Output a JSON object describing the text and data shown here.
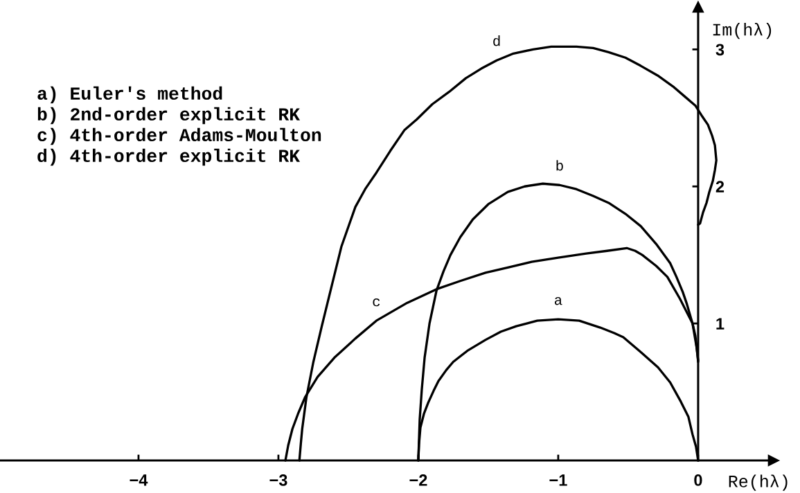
{
  "chart_data": {
    "type": "line",
    "xlabel": "Re(hλ)",
    "ylabel": "Im(hλ)",
    "annotations": [
      "a) Euler's method",
      "b) 2nd-order explicit RK",
      "c) 4th-order Adams-Moulton",
      "d) 4th-order explicit RK"
    ],
    "xlim": [
      -4.99,
      0.54
    ],
    "ylim": [
      0,
      3.31
    ],
    "xticks": [
      {
        "value": -4,
        "label": "−4"
      },
      {
        "value": -3,
        "label": "−3"
      },
      {
        "value": -2,
        "label": "−2"
      },
      {
        "value": -1,
        "label": "−1"
      },
      0
    ],
    "yticks": [
      1,
      2,
      3
    ],
    "series": [
      {
        "name": "a",
        "color": "#000000",
        "x": [
          -2,
          -1.995,
          -1.985,
          -1.96,
          -1.93,
          -1.89,
          -1.856,
          -1.8,
          -1.75,
          -1.65,
          -1.52,
          -1.41,
          -1.3,
          -1.15,
          -1.0,
          -0.85,
          -0.7,
          -0.6,
          -0.535,
          -0.42,
          -0.287,
          -0.2,
          -0.124,
          -0.07,
          -0.04,
          -0.015,
          0
        ],
        "values": [
          0,
          0.12,
          0.24,
          0.34,
          0.42,
          0.51,
          0.58,
          0.66,
          0.72,
          0.8,
          0.88,
          0.94,
          0.98,
          1.02,
          1.03,
          1.02,
          0.97,
          0.93,
          0.9,
          0.8,
          0.68,
          0.57,
          0.43,
          0.32,
          0.19,
          0.1,
          0
        ]
      },
      {
        "name": "b",
        "color": "#000000",
        "x": [
          -2,
          -1.995,
          -1.99,
          -1.975,
          -1.955,
          -1.92,
          -1.87,
          -1.82,
          -1.77,
          -1.7,
          -1.61,
          -1.5,
          -1.36,
          -1.24,
          -1.11,
          -0.99,
          -0.87,
          -0.75,
          -0.64,
          -0.52,
          -0.41,
          -0.3,
          -0.2,
          -0.155,
          -0.11,
          -0.08,
          -0.04,
          -0.02,
          -0.01,
          0
        ],
        "values": [
          0,
          0.15,
          0.3,
          0.52,
          0.75,
          1.0,
          1.24,
          1.38,
          1.5,
          1.63,
          1.76,
          1.87,
          1.96,
          2.0,
          2.02,
          2.01,
          1.98,
          1.93,
          1.88,
          1.8,
          1.71,
          1.58,
          1.44,
          1.34,
          1.23,
          1.14,
          1.0,
          0.91,
          0.82,
          0.73
        ]
      },
      {
        "name": "c",
        "color": "#000000",
        "x": [
          -2.95,
          -2.93,
          -2.9,
          -2.86,
          -2.81,
          -2.72,
          -2.6,
          -2.45,
          -2.3,
          -2.08,
          -1.87,
          -1.7,
          -1.52,
          -1.35,
          -1.19,
          -1.0,
          -0.8,
          -0.65,
          -0.51,
          -0.45,
          -0.4,
          -0.3,
          -0.22,
          -0.13,
          -0.07,
          -0.04,
          -0.01,
          0
        ],
        "values": [
          0,
          0.11,
          0.23,
          0.34,
          0.46,
          0.61,
          0.75,
          0.89,
          1.02,
          1.15,
          1.25,
          1.31,
          1.37,
          1.41,
          1.45,
          1.48,
          1.51,
          1.53,
          1.55,
          1.53,
          1.5,
          1.42,
          1.34,
          1.18,
          1.06,
          1.0,
          0.82,
          0.72
        ]
      },
      {
        "name": "d",
        "color": "#000000",
        "x": [
          -2.85,
          -2.84,
          -2.83,
          -2.8,
          -2.75,
          -2.69,
          -2.62,
          -2.55,
          -2.45,
          -2.38,
          -2.3,
          -2.2,
          -2.1,
          -2.01,
          -1.9,
          -1.78,
          -1.66,
          -1.55,
          -1.44,
          -1.32,
          -1.18,
          -1.05,
          -0.87,
          -0.75,
          -0.64,
          -0.52,
          -0.41,
          -0.29,
          -0.18,
          -0.1,
          -0.02,
          0.03,
          0.07,
          0.1,
          0.12,
          0.13,
          0.12,
          0.105,
          0.08,
          0.06,
          0.035,
          0.014,
          0
        ],
        "values": [
          0,
          0.12,
          0.23,
          0.46,
          0.72,
          0.98,
          1.27,
          1.56,
          1.85,
          1.98,
          2.1,
          2.26,
          2.41,
          2.49,
          2.6,
          2.69,
          2.79,
          2.86,
          2.92,
          2.97,
          3.0,
          3.02,
          3.02,
          3.01,
          2.98,
          2.94,
          2.88,
          2.81,
          2.73,
          2.66,
          2.59,
          2.51,
          2.45,
          2.37,
          2.3,
          2.19,
          2.12,
          2.04,
          1.96,
          1.88,
          1.81,
          1.73,
          1.72
        ]
      }
    ]
  }
}
